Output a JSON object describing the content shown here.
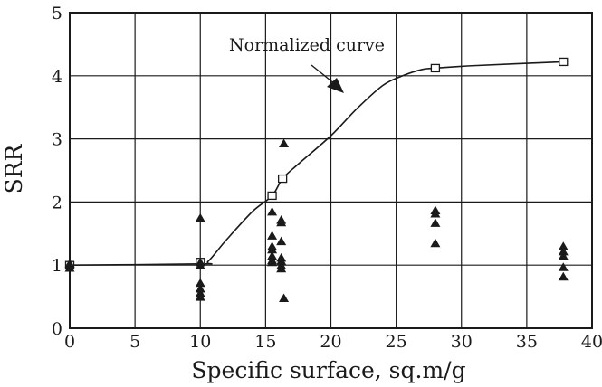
{
  "chart_data": {
    "type": "scatter",
    "xlabel": "Specific surface, sq.m/g",
    "ylabel": "SRR",
    "xlim": [
      0,
      40
    ],
    "ylim": [
      0,
      5
    ],
    "xticks": [
      0,
      5,
      10,
      15,
      20,
      25,
      30,
      35,
      40
    ],
    "yticks": [
      0,
      1,
      2,
      3,
      4,
      5
    ],
    "grid": true,
    "annotation": "Normalized curve",
    "series": [
      {
        "marker": "open-square",
        "line": "smooth",
        "points": [
          [
            0,
            1.0
          ],
          [
            10,
            1.05
          ],
          [
            15.5,
            2.1
          ],
          [
            16.3,
            2.37
          ],
          [
            28,
            4.12
          ],
          [
            37.8,
            4.22
          ]
        ],
        "curve": [
          [
            0,
            1.0
          ],
          [
            10,
            1.02
          ],
          [
            10.6,
            1.06
          ],
          [
            12,
            1.4
          ],
          [
            14,
            1.85
          ],
          [
            15.5,
            2.1
          ],
          [
            16.3,
            2.37
          ],
          [
            17.5,
            2.6
          ],
          [
            20,
            3.05
          ],
          [
            22,
            3.48
          ],
          [
            24,
            3.85
          ],
          [
            25.5,
            4.0
          ],
          [
            27,
            4.1
          ],
          [
            28,
            4.12
          ],
          [
            31,
            4.16
          ],
          [
            37.8,
            4.22
          ]
        ]
      },
      {
        "marker": "filled-triangle",
        "points": [
          [
            0,
            0.96
          ],
          [
            0,
            1.0
          ],
          [
            0,
            1.03
          ],
          [
            10,
            1.75
          ],
          [
            10,
            1.05
          ],
          [
            10,
            1.0
          ],
          [
            10,
            0.72
          ],
          [
            10,
            0.63
          ],
          [
            10,
            0.56
          ],
          [
            10,
            0.5
          ],
          [
            15.5,
            1.85
          ],
          [
            15.5,
            1.47
          ],
          [
            15.5,
            1.3
          ],
          [
            15.5,
            1.25
          ],
          [
            15.5,
            1.15
          ],
          [
            15.5,
            1.08
          ],
          [
            15.5,
            1.05
          ],
          [
            16.2,
            1.72
          ],
          [
            16.2,
            1.68
          ],
          [
            16.2,
            1.38
          ],
          [
            16.2,
            1.12
          ],
          [
            16.2,
            1.07
          ],
          [
            16.2,
            1.0
          ],
          [
            16.2,
            0.95
          ],
          [
            16.4,
            2.93
          ],
          [
            16.4,
            0.48
          ],
          [
            28,
            1.87
          ],
          [
            28,
            1.82
          ],
          [
            28,
            1.67
          ],
          [
            28,
            1.35
          ],
          [
            37.8,
            1.3
          ],
          [
            37.8,
            1.22
          ],
          [
            37.8,
            1.15
          ],
          [
            37.8,
            0.97
          ],
          [
            37.8,
            0.82
          ]
        ]
      }
    ]
  }
}
